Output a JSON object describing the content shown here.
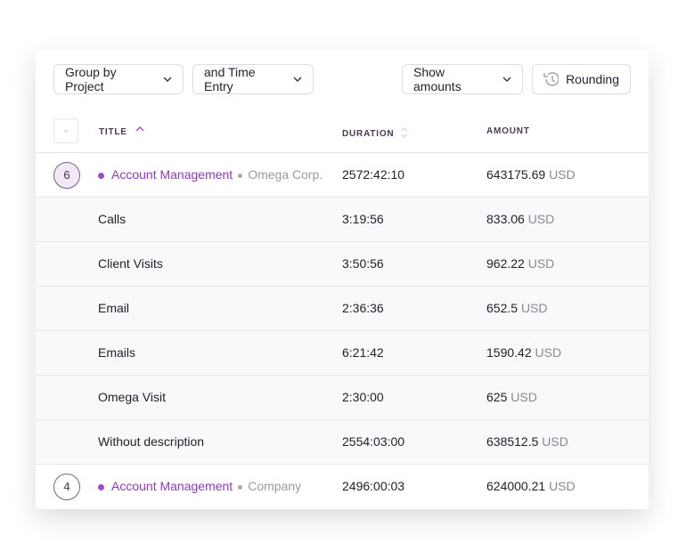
{
  "toolbar": {
    "group_by": "Group by Project",
    "sub_group": "and Time Entry",
    "amounts": "Show amounts",
    "rounding": "Rounding"
  },
  "table": {
    "headers": [
      "TITLE",
      "DURATION",
      "AMOUNT"
    ],
    "groups": [
      {
        "count": "6",
        "project": "Account Management",
        "client": "Omega Corp.",
        "duration": "2572:42:10",
        "amount": "643175.69",
        "currency": "USD",
        "entries": [
          {
            "title": "Calls",
            "duration": "3:19:56",
            "amount": "833.06",
            "currency": "USD"
          },
          {
            "title": "Client Visits",
            "duration": "3:50:56",
            "amount": "962.22",
            "currency": "USD"
          },
          {
            "title": "Email",
            "duration": "2:36:36",
            "amount": "652.5",
            "currency": "USD"
          },
          {
            "title": "Emails",
            "duration": "6:21:42",
            "amount": "1590.42",
            "currency": "USD"
          },
          {
            "title": "Omega Visit",
            "duration": "2:30:00",
            "amount": "625",
            "currency": "USD"
          },
          {
            "title": "Without description",
            "duration": "2554:03:00",
            "amount": "638512.5",
            "currency": "USD"
          }
        ]
      },
      {
        "count": "4",
        "project": "Account Management",
        "client": "Company",
        "duration": "2496:00:03",
        "amount": "624000.21",
        "currency": "USD",
        "entries": []
      }
    ]
  }
}
